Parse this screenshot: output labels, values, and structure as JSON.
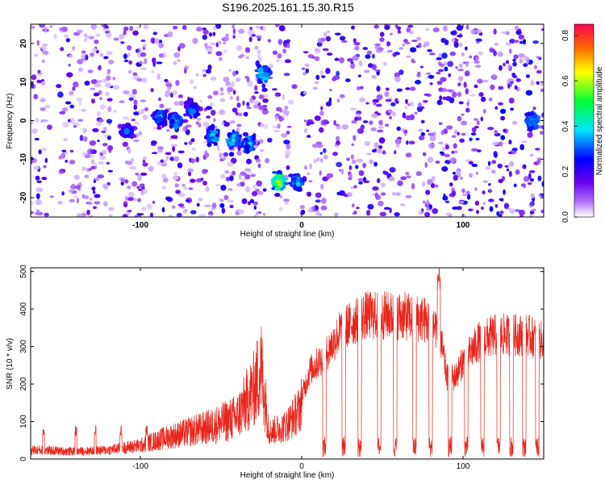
{
  "title": "S196.2025.161.15.30.R15",
  "chart_data": [
    {
      "type": "heatmap",
      "xlabel": "Height of straight line (km)",
      "ylabel": "Frequency (Hz)",
      "xlim": [
        -168,
        150
      ],
      "ylim": [
        -25,
        25
      ],
      "xticks": [
        -100,
        0,
        100
      ],
      "yticks": [
        -20,
        -10,
        0,
        10,
        20
      ],
      "colorbar": {
        "label": "Normalized spectral amplitude",
        "range": [
          0,
          0.85
        ],
        "ticks": [
          "0.0",
          "0.2",
          "0.4",
          "0.6",
          "0.8"
        ],
        "colormap": [
          "#ffffff",
          "#7a00ff",
          "#0000ff",
          "#00e5ff",
          "#00ff33",
          "#ffff00",
          "#ff6600",
          "#ff0055"
        ]
      },
      "hotspots": [
        {
          "x": -108,
          "y": -3,
          "amp": 0.38
        },
        {
          "x": -88,
          "y": 1,
          "amp": 0.45
        },
        {
          "x": -78,
          "y": 0,
          "amp": 0.5
        },
        {
          "x": -68,
          "y": 3,
          "amp": 0.42
        },
        {
          "x": -55,
          "y": -4,
          "amp": 0.5
        },
        {
          "x": -42,
          "y": -5,
          "amp": 0.55
        },
        {
          "x": -33,
          "y": -6,
          "amp": 0.5
        },
        {
          "x": -24,
          "y": 12,
          "amp": 0.55
        },
        {
          "x": -14,
          "y": -16,
          "amp": 0.75
        },
        {
          "x": -3,
          "y": -16,
          "amp": 0.45
        },
        {
          "x": 143,
          "y": 0,
          "amp": 0.5
        }
      ]
    },
    {
      "type": "line",
      "xlabel": "Height of straight line (km)",
      "ylabel": "SNR (10 * v/v)",
      "xlim": [
        -168,
        150
      ],
      "ylim": [
        0,
        510
      ],
      "xticks": [
        -100,
        0,
        100
      ],
      "yticks": [
        0,
        100,
        200,
        300,
        400,
        500
      ],
      "color": "#e8261c",
      "envelope": [
        {
          "x": -168,
          "y": 30
        },
        {
          "x": -140,
          "y": 25
        },
        {
          "x": -120,
          "y": 30
        },
        {
          "x": -100,
          "y": 45
        },
        {
          "x": -85,
          "y": 70
        },
        {
          "x": -70,
          "y": 90
        },
        {
          "x": -55,
          "y": 110
        },
        {
          "x": -40,
          "y": 140
        },
        {
          "x": -30,
          "y": 230
        },
        {
          "x": -25,
          "y": 300
        },
        {
          "x": -20,
          "y": 90
        },
        {
          "x": -10,
          "y": 110
        },
        {
          "x": -2,
          "y": 160
        },
        {
          "x": 5,
          "y": 270
        },
        {
          "x": 15,
          "y": 320
        },
        {
          "x": 25,
          "y": 400
        },
        {
          "x": 40,
          "y": 440
        },
        {
          "x": 60,
          "y": 440
        },
        {
          "x": 75,
          "y": 430
        },
        {
          "x": 85,
          "y": 400
        },
        {
          "x": 90,
          "y": 250
        },
        {
          "x": 95,
          "y": 250
        },
        {
          "x": 100,
          "y": 300
        },
        {
          "x": 110,
          "y": 360
        },
        {
          "x": 120,
          "y": 380
        },
        {
          "x": 130,
          "y": 380
        },
        {
          "x": 140,
          "y": 380
        },
        {
          "x": 150,
          "y": 360
        }
      ],
      "dropouts_x": [
        14,
        26,
        36,
        48,
        58,
        70,
        80,
        92,
        102,
        112,
        122,
        130,
        138,
        146
      ]
    }
  ]
}
